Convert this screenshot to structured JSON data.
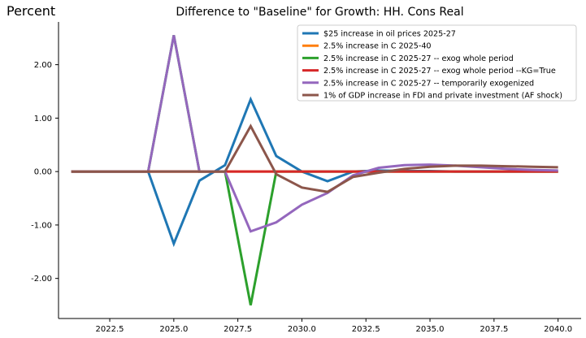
{
  "page": {
    "corner_label": "Percent",
    "title": "Difference to \"Baseline\" for Growth: HH. Cons Real"
  },
  "chart_data": {
    "type": "line",
    "title": "Difference to \"Baseline\" for Growth: HH. Cons Real",
    "ylabel": "Percent",
    "xlabel": "",
    "xlim": [
      2020.5,
      2040.9
    ],
    "ylim": [
      -2.75,
      2.8
    ],
    "x_ticks": [
      2022.5,
      2025.0,
      2027.5,
      2030.0,
      2032.5,
      2035.0,
      2037.5,
      2040.0
    ],
    "x_tick_labels": [
      "2022.5",
      "2025.0",
      "2027.5",
      "2030.0",
      "2032.5",
      "2035.0",
      "2037.5",
      "2040.0"
    ],
    "y_ticks": [
      -2,
      -1,
      0,
      1,
      2
    ],
    "y_tick_labels": [
      "-2.00",
      "-1.00",
      "0.00",
      "1.00",
      "2.00"
    ],
    "grid": false,
    "legend_position": "top-right",
    "x": [
      2021,
      2022,
      2023,
      2024,
      2025,
      2026,
      2027,
      2028,
      2029,
      2030,
      2031,
      2032,
      2033,
      2034,
      2035,
      2036,
      2037,
      2038,
      2039,
      2040
    ],
    "series": [
      {
        "name": "$25 increase in oil prices 2025-27",
        "color": "#1f77b4",
        "values": [
          0,
          0,
          0,
          0,
          -1.35,
          -0.17,
          0.12,
          1.35,
          0.29,
          0.0,
          -0.18,
          0.0,
          0.02,
          0.01,
          0.01,
          0.0,
          0.0,
          0.0,
          0.0,
          0.0
        ]
      },
      {
        "name": "2.5% increase in C 2025-40",
        "color": "#ff7f0e",
        "values": [
          0,
          0,
          0,
          0,
          0,
          0,
          0,
          0,
          0,
          0,
          0,
          0,
          0,
          0,
          0,
          0,
          0,
          0,
          0,
          0
        ]
      },
      {
        "name": "2.5% increase in C 2025-27 -- exog whole period",
        "color": "#2ca02c",
        "values": [
          0,
          0,
          0,
          0,
          2.55,
          0.0,
          0.0,
          -2.5,
          0.0,
          0.0,
          0.0,
          0.0,
          0.0,
          0.0,
          0.0,
          0.0,
          0.0,
          0.0,
          0.0,
          0.0
        ]
      },
      {
        "name": "2.5% increase in C 2025-27 -- exog whole period --KG=True",
        "color": "#d62728",
        "values": [
          0,
          0,
          0,
          0,
          0,
          0,
          0,
          0,
          0,
          0,
          0,
          0,
          0,
          0,
          0,
          0,
          0,
          0,
          0,
          0
        ]
      },
      {
        "name": "2.5% increase in C 2025-27 -- temporarily exogenized",
        "color": "#9467bd",
        "values": [
          0,
          0,
          0,
          0,
          2.55,
          0.0,
          0.0,
          -1.12,
          -0.95,
          -0.62,
          -0.4,
          -0.07,
          0.07,
          0.12,
          0.13,
          0.11,
          0.08,
          0.05,
          0.03,
          0.02
        ]
      },
      {
        "name": "1% of GDP increase in FDI and private investment (AF shock)",
        "color": "#8c564b",
        "values": [
          0,
          0,
          0,
          0,
          0,
          0,
          0,
          0.85,
          -0.05,
          -0.3,
          -0.38,
          -0.1,
          -0.02,
          0.05,
          0.09,
          0.11,
          0.11,
          0.1,
          0.09,
          0.08
        ]
      }
    ]
  }
}
